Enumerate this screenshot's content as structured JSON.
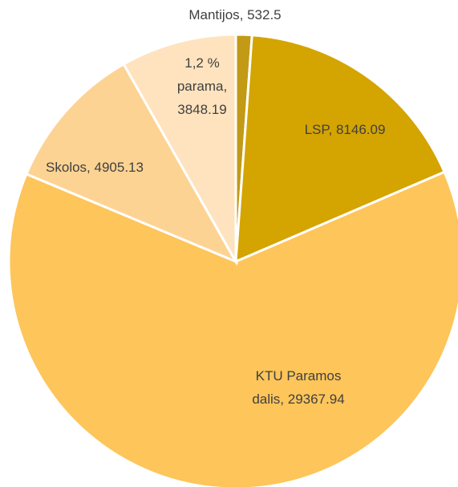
{
  "chart_data": {
    "type": "pie",
    "categories": [
      "Mantijos",
      "LSP",
      "KTU Paramos dalis",
      "Skolos",
      "1,2 % parama"
    ],
    "values": [
      532.5,
      8146.09,
      29367.94,
      4905.13,
      3848.19
    ],
    "value_labels": [
      "Mantijos, 532.5",
      "LSP, 8146.09",
      "KTU Paramos\ndalis, 29367.94",
      "Skolos, 4905.13",
      "1,2 %\nparama,\n3848.19"
    ],
    "colors": [
      "#c39a16",
      "#d4a400",
      "#fdc55a",
      "#fdd393",
      "#fee3be"
    ]
  }
}
